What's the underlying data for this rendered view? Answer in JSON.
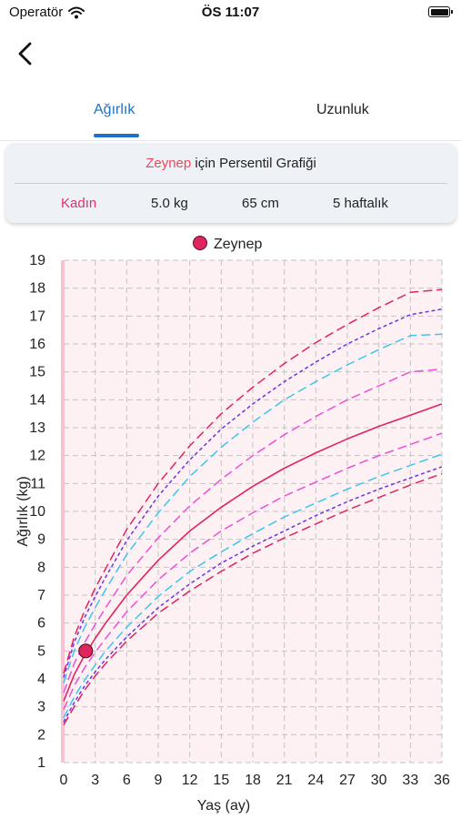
{
  "status_bar": {
    "carrier": "Operatör",
    "time": "ÖS 11:07"
  },
  "tabs": [
    {
      "label": "Ağırlık",
      "active": true
    },
    {
      "label": "Uzunluk",
      "active": false
    }
  ],
  "info_card": {
    "name": "Zeynep",
    "title_suffix": " için Persentil Grafiği",
    "gender": "Kadın",
    "weight": "5.0 kg",
    "height": "65 cm",
    "age": "5 haftalık"
  },
  "colors": {
    "accent_blue": "#1e72c4",
    "name_red": "#e84a5f",
    "gender_pink": "#e0306e",
    "point": "#e0245e",
    "plot_bg": "#fdf1f4"
  },
  "chart_data": {
    "type": "line",
    "legend": [
      {
        "name": "Zeynep",
        "color": "#e0245e"
      }
    ],
    "xlabel": "Yaş (ay)",
    "ylabel": "Ağırlık (kg)",
    "xlim": [
      0,
      36
    ],
    "ylim": [
      1,
      19
    ],
    "x_ticks": [
      0,
      3,
      6,
      9,
      12,
      15,
      18,
      21,
      24,
      27,
      30,
      33,
      36
    ],
    "y_ticks": [
      1,
      2,
      3,
      4,
      5,
      6,
      7,
      8,
      9,
      10,
      11,
      12,
      13,
      14,
      15,
      16,
      17,
      18,
      19
    ],
    "grid": true,
    "x": [
      0,
      1,
      2,
      3,
      4,
      6,
      9,
      12,
      15,
      18,
      21,
      24,
      27,
      30,
      33,
      36
    ],
    "series": [
      {
        "style": "dashed",
        "color": "#e0245e",
        "values": [
          2.35,
          3.0,
          3.6,
          4.1,
          4.55,
          5.35,
          6.35,
          7.15,
          7.85,
          8.5,
          9.05,
          9.55,
          10.05,
          10.5,
          10.95,
          11.35
        ]
      },
      {
        "style": "dotted",
        "color": "#6a36e0",
        "values": [
          2.45,
          3.15,
          3.75,
          4.25,
          4.7,
          5.5,
          6.55,
          7.4,
          8.15,
          8.75,
          9.3,
          9.85,
          10.35,
          10.8,
          11.2,
          11.6
        ]
      },
      {
        "style": "dashed",
        "color": "#3cc6ee",
        "values": [
          2.6,
          3.35,
          3.95,
          4.5,
          5.0,
          5.85,
          6.95,
          7.85,
          8.55,
          9.2,
          9.8,
          10.3,
          10.8,
          11.25,
          11.65,
          12.05
        ]
      },
      {
        "style": "dashed",
        "color": "#ea4fd8",
        "values": [
          2.9,
          3.75,
          4.4,
          4.95,
          5.45,
          6.4,
          7.55,
          8.5,
          9.3,
          9.95,
          10.55,
          11.05,
          11.55,
          12.0,
          12.4,
          12.8
        ]
      },
      {
        "style": "solid",
        "color": "#e0245e",
        "values": [
          3.2,
          4.15,
          4.85,
          5.45,
          6.0,
          7.0,
          8.25,
          9.3,
          10.15,
          10.9,
          11.55,
          12.1,
          12.6,
          13.05,
          13.45,
          13.85
        ]
      },
      {
        "style": "dashed",
        "color": "#ea4fd8",
        "values": [
          3.5,
          4.55,
          5.3,
          5.95,
          6.55,
          7.7,
          9.05,
          10.2,
          11.15,
          12.0,
          12.75,
          13.4,
          14.0,
          14.5,
          15.0,
          15.1
        ]
      },
      {
        "style": "dashed",
        "color": "#3cc6ee",
        "values": [
          3.85,
          5.0,
          5.85,
          6.55,
          7.2,
          8.45,
          9.95,
          11.25,
          12.3,
          13.2,
          14.0,
          14.65,
          15.25,
          15.8,
          16.3,
          16.35
        ]
      },
      {
        "style": "dotted",
        "color": "#6a36e0",
        "values": [
          4.05,
          5.3,
          6.2,
          6.95,
          7.65,
          8.95,
          10.55,
          11.85,
          12.95,
          13.85,
          14.65,
          15.35,
          16.0,
          16.55,
          17.05,
          17.25
        ]
      },
      {
        "style": "dashed",
        "color": "#e0245e",
        "values": [
          4.2,
          5.5,
          6.45,
          7.25,
          7.95,
          9.35,
          11.0,
          12.35,
          13.5,
          14.45,
          15.3,
          16.05,
          16.7,
          17.3,
          17.85,
          17.95
        ]
      }
    ],
    "points": [
      {
        "name": "Zeynep",
        "x": 2.1,
        "y": 5.0
      }
    ]
  }
}
